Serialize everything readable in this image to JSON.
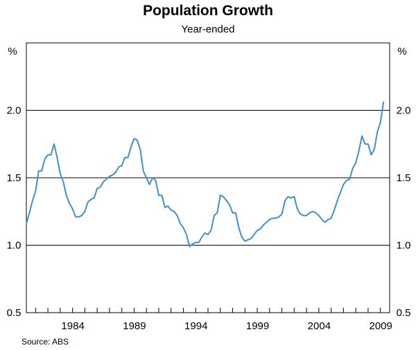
{
  "chart_data": {
    "type": "line",
    "title": "Population Growth",
    "subtitle": "Year-ended",
    "ylabel_left": "%",
    "ylabel_right": "%",
    "ylim": [
      0.5,
      2.5
    ],
    "yticks": [
      0.5,
      1.0,
      1.5,
      2.0
    ],
    "ytick_labels": [
      "0.5",
      "1.0",
      "1.5",
      "2.0"
    ],
    "xlim": [
      1980.25,
      2009.75
    ],
    "xticks": [
      1984,
      1989,
      1994,
      1999,
      2004,
      2009
    ],
    "xtick_labels": [
      "1984",
      "1989",
      "1994",
      "1999",
      "2004",
      "2009"
    ],
    "gridlines": [
      1.0,
      1.5,
      2.0
    ],
    "source": "Source: ABS",
    "series": [
      {
        "name": "Population growth (year-ended)",
        "color": "#3f8fce",
        "x": [
          1980.25,
          1980.5,
          1980.75,
          1981.0,
          1981.25,
          1981.5,
          1981.75,
          1982.0,
          1982.25,
          1982.5,
          1982.75,
          1983.0,
          1983.25,
          1983.5,
          1983.75,
          1984.0,
          1984.25,
          1984.5,
          1984.75,
          1985.0,
          1985.25,
          1985.5,
          1985.75,
          1986.0,
          1986.25,
          1986.5,
          1986.75,
          1987.0,
          1987.25,
          1987.5,
          1987.75,
          1988.0,
          1988.25,
          1988.5,
          1988.75,
          1989.0,
          1989.25,
          1989.5,
          1989.75,
          1990.0,
          1990.25,
          1990.5,
          1990.75,
          1991.0,
          1991.25,
          1991.5,
          1991.75,
          1992.0,
          1992.25,
          1992.5,
          1992.75,
          1993.0,
          1993.25,
          1993.5,
          1993.75,
          1994.0,
          1994.25,
          1994.5,
          1994.75,
          1995.0,
          1995.25,
          1995.5,
          1995.75,
          1996.0,
          1996.25,
          1996.5,
          1996.75,
          1997.0,
          1997.25,
          1997.5,
          1997.75,
          1998.0,
          1998.25,
          1998.5,
          1998.75,
          1999.0,
          1999.25,
          1999.5,
          1999.75,
          2000.0,
          2000.25,
          2000.5,
          2000.75,
          2001.0,
          2001.25,
          2001.5,
          2001.75,
          2002.0,
          2002.25,
          2002.5,
          2002.75,
          2003.0,
          2003.25,
          2003.5,
          2003.75,
          2004.0,
          2004.25,
          2004.5,
          2004.75,
          2005.0,
          2005.25,
          2005.5,
          2005.75,
          2006.0,
          2006.25,
          2006.5,
          2006.75,
          2007.0,
          2007.25,
          2007.5,
          2007.75,
          2008.0,
          2008.25,
          2008.5,
          2008.75,
          2009.0,
          2009.25
        ],
        "values": [
          1.16,
          1.24,
          1.33,
          1.4,
          1.55,
          1.55,
          1.64,
          1.67,
          1.67,
          1.75,
          1.65,
          1.53,
          1.47,
          1.37,
          1.31,
          1.27,
          1.21,
          1.21,
          1.22,
          1.25,
          1.32,
          1.34,
          1.35,
          1.42,
          1.43,
          1.47,
          1.49,
          1.51,
          1.52,
          1.54,
          1.58,
          1.59,
          1.65,
          1.65,
          1.73,
          1.79,
          1.78,
          1.71,
          1.55,
          1.5,
          1.45,
          1.5,
          1.48,
          1.37,
          1.37,
          1.28,
          1.29,
          1.26,
          1.25,
          1.22,
          1.16,
          1.13,
          1.08,
          0.99,
          1.01,
          1.02,
          1.02,
          1.06,
          1.09,
          1.08,
          1.11,
          1.22,
          1.24,
          1.37,
          1.36,
          1.33,
          1.3,
          1.24,
          1.24,
          1.13,
          1.06,
          1.03,
          1.04,
          1.05,
          1.08,
          1.11,
          1.12,
          1.15,
          1.17,
          1.19,
          1.2,
          1.2,
          1.21,
          1.23,
          1.33,
          1.36,
          1.35,
          1.36,
          1.27,
          1.23,
          1.22,
          1.22,
          1.24,
          1.25,
          1.24,
          1.22,
          1.19,
          1.17,
          1.19,
          1.2,
          1.26,
          1.33,
          1.39,
          1.45,
          1.48,
          1.49,
          1.57,
          1.61,
          1.7,
          1.81,
          1.75,
          1.75,
          1.67,
          1.71,
          1.84,
          1.91,
          2.06
        ]
      }
    ]
  }
}
